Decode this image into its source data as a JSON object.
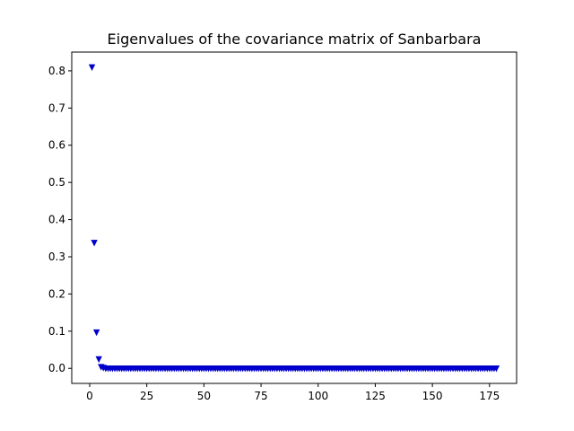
{
  "chart_data": {
    "type": "scatter",
    "title": "Eigenvalues of the covariance matrix of Sanbarbara",
    "xlabel": "",
    "ylabel": "",
    "xlim": [
      -7.85,
      186.85
    ],
    "ylim": [
      -0.0405,
      0.8505
    ],
    "x_ticks": [
      0,
      25,
      50,
      75,
      100,
      125,
      150,
      175
    ],
    "y_ticks": [
      0.0,
      0.1,
      0.2,
      0.3,
      0.4,
      0.5,
      0.6,
      0.7,
      0.8
    ],
    "y_tick_labels": [
      "0.0",
      "0.1",
      "0.2",
      "0.3",
      "0.4",
      "0.5",
      "0.6",
      "0.7",
      "0.8"
    ],
    "grid": false,
    "marker": "triangle-down",
    "marker_color": "#0000cc",
    "series": [
      {
        "x_start": 1,
        "x_end": 178,
        "leading_values": [
          0.81,
          0.338,
          0.097,
          0.025,
          0.004,
          0.002
        ],
        "remaining_value": 0.0
      }
    ]
  }
}
